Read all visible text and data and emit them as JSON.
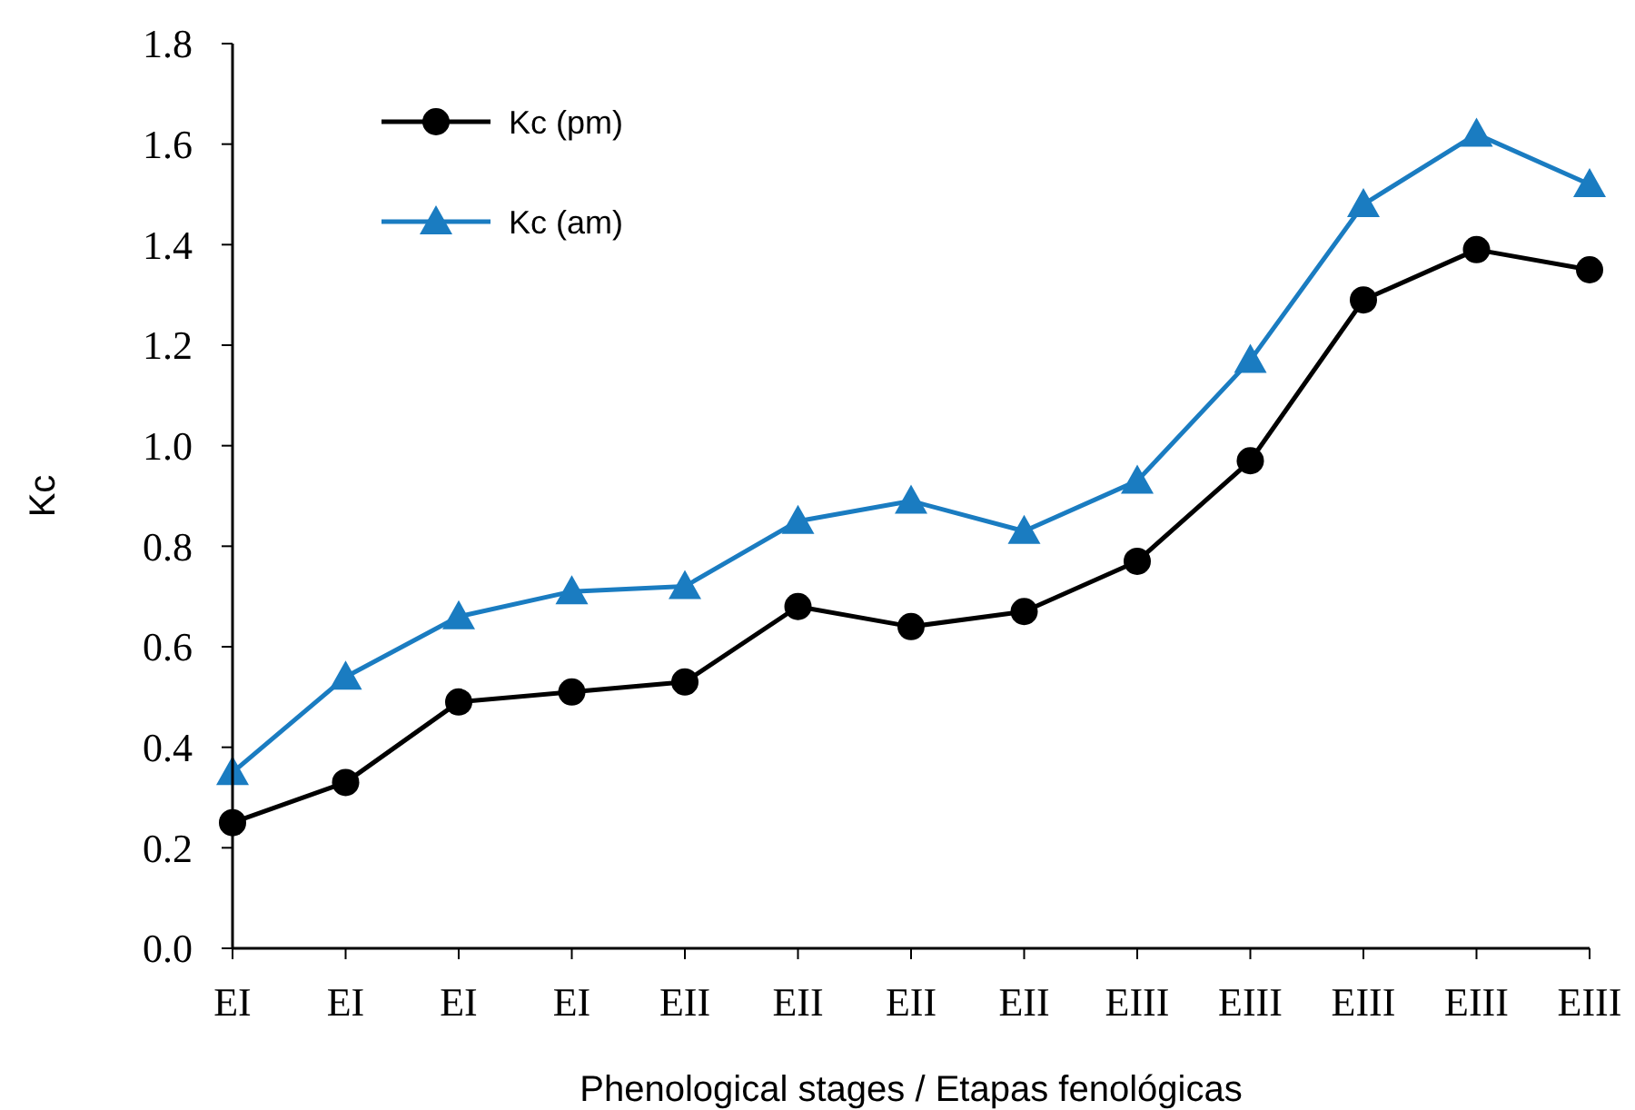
{
  "chart_data": {
    "type": "line",
    "xlabel": "Phenological stages / Etapas fenológicas",
    "ylabel": "Kc",
    "categories": [
      "EI",
      "EI",
      "EI",
      "EI",
      "EII",
      "EII",
      "EII",
      "EII",
      "EIII",
      "EIII",
      "EIII",
      "EIII",
      "EIII"
    ],
    "series": [
      {
        "name": "Kc (pm)",
        "color": "#000000",
        "marker": "circle",
        "values": [
          0.25,
          0.33,
          0.49,
          0.51,
          0.53,
          0.68,
          0.64,
          0.67,
          0.77,
          0.97,
          1.29,
          1.39,
          1.35
        ]
      },
      {
        "name": "Kc (am)",
        "color": "#1a7cc1",
        "marker": "triangle",
        "values": [
          0.35,
          0.54,
          0.66,
          0.71,
          0.72,
          0.85,
          0.89,
          0.83,
          0.93,
          1.17,
          1.48,
          1.62,
          1.52
        ]
      }
    ],
    "ylim": [
      0,
      1.8
    ],
    "yticks": [
      {
        "value": 0,
        "label": "0.0"
      },
      {
        "value": 0.2,
        "label": "0.2"
      },
      {
        "value": 0.4,
        "label": "0.4"
      },
      {
        "value": 0.6,
        "label": "0.6"
      },
      {
        "value": 0.8,
        "label": "0.8"
      },
      {
        "value": 1,
        "label": "1.0"
      },
      {
        "value": 1.2,
        "label": "1.2"
      },
      {
        "value": 1.4,
        "label": "1.4"
      },
      {
        "value": 1.6,
        "label": "1.6"
      },
      {
        "value": 1.8,
        "label": "1.8"
      }
    ],
    "grid": false,
    "legend": "top left",
    "line_style": "solid"
  }
}
